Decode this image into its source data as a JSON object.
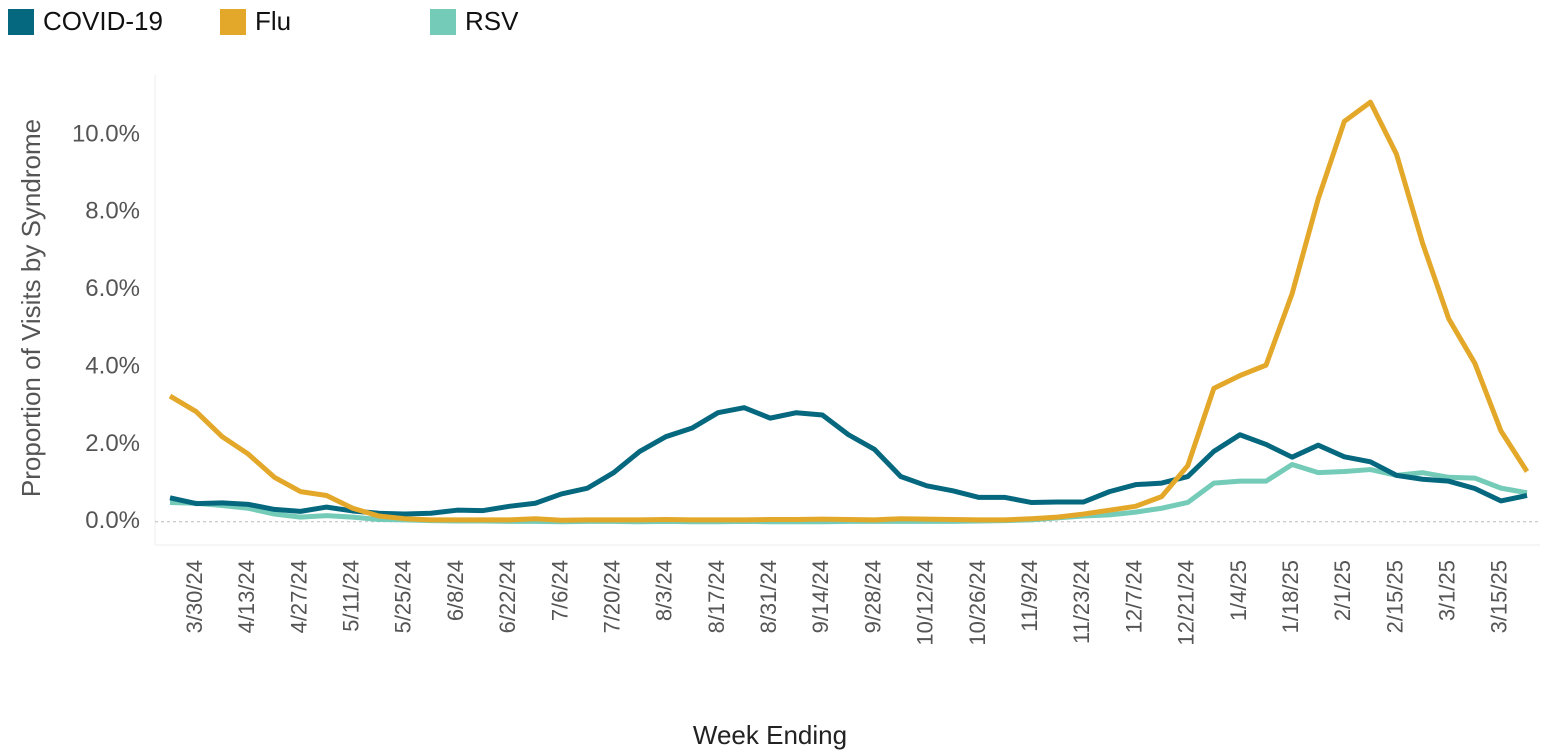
{
  "chart_data": {
    "type": "line",
    "y_axis_label": "Proportion of Visits by Syndrome",
    "x_axis_label": "Week Ending",
    "categories": [
      null,
      "3/30/24",
      null,
      "4/13/24",
      null,
      "4/27/24",
      null,
      "5/11/24",
      null,
      "5/25/24",
      null,
      "6/8/24",
      null,
      "6/22/24",
      null,
      "7/6/24",
      null,
      "7/20/24",
      null,
      "8/3/24",
      null,
      "8/17/24",
      null,
      "8/31/24",
      null,
      "9/14/24",
      null,
      "9/28/24",
      null,
      "10/12/24",
      null,
      "10/26/24",
      null,
      "11/9/24",
      null,
      "11/23/24",
      null,
      "12/7/24",
      null,
      "12/21/24",
      null,
      "1/4/25",
      null,
      "1/18/25",
      null,
      "2/1/25",
      null,
      "2/15/25",
      null,
      "3/1/25",
      null,
      "3/15/25",
      null
    ],
    "series": [
      {
        "name": "COVID-19",
        "color": "#05687e",
        "values": [
          0.62,
          0.47,
          0.49,
          0.45,
          0.32,
          0.27,
          0.38,
          0.28,
          0.22,
          0.2,
          0.22,
          0.3,
          0.29,
          0.4,
          0.48,
          0.72,
          0.87,
          1.27,
          1.82,
          2.2,
          2.42,
          2.82,
          2.95,
          2.68,
          2.82,
          2.76,
          2.25,
          1.87,
          1.17,
          0.93,
          0.8,
          0.63,
          0.63,
          0.5,
          0.51,
          0.51,
          0.78,
          0.96,
          1.0,
          1.17,
          1.82,
          2.25,
          2.0,
          1.67,
          1.98,
          1.68,
          1.55,
          1.2,
          1.1,
          1.05,
          0.86,
          0.54,
          0.68
        ]
      },
      {
        "name": "Flu",
        "color": "#e3a829",
        "values": [
          3.25,
          2.85,
          2.2,
          1.75,
          1.15,
          0.78,
          0.68,
          0.35,
          0.15,
          0.08,
          0.05,
          0.05,
          0.05,
          0.05,
          0.08,
          0.04,
          0.05,
          0.05,
          0.05,
          0.06,
          0.05,
          0.05,
          0.05,
          0.06,
          0.06,
          0.07,
          0.06,
          0.05,
          0.08,
          0.07,
          0.06,
          0.05,
          0.05,
          0.08,
          0.12,
          0.2,
          0.3,
          0.4,
          0.65,
          1.45,
          3.45,
          3.78,
          4.05,
          5.9,
          8.35,
          10.35,
          10.85,
          9.5,
          7.2,
          5.25,
          4.1,
          2.35,
          1.3
        ]
      },
      {
        "name": "RSV",
        "color": "#74cbb8",
        "values": [
          0.5,
          0.48,
          0.42,
          0.35,
          0.2,
          0.12,
          0.16,
          0.12,
          0.06,
          0.05,
          0.03,
          0.02,
          0.02,
          0.01,
          0.01,
          0,
          0.01,
          0.01,
          0,
          0.01,
          0,
          0,
          0.01,
          0,
          0,
          0,
          0.01,
          0.01,
          0.01,
          0.01,
          0.01,
          0.02,
          0.03,
          0.05,
          0.1,
          0.15,
          0.18,
          0.25,
          0.35,
          0.5,
          1.0,
          1.05,
          1.05,
          1.48,
          1.27,
          1.3,
          1.35,
          1.2,
          1.27,
          1.15,
          1.13,
          0.87,
          0.75
        ]
      }
    ],
    "ylim": [
      -0.6,
      11.55
    ],
    "yticks": [
      {
        "value": 0,
        "label": "0.0%"
      },
      {
        "value": 2,
        "label": "2.0%"
      },
      {
        "value": 4,
        "label": "4.0%"
      },
      {
        "value": 6,
        "label": "6.0%"
      },
      {
        "value": 8,
        "label": "8.0%"
      },
      {
        "value": 10,
        "label": "10.0%"
      }
    ],
    "grid": false
  }
}
